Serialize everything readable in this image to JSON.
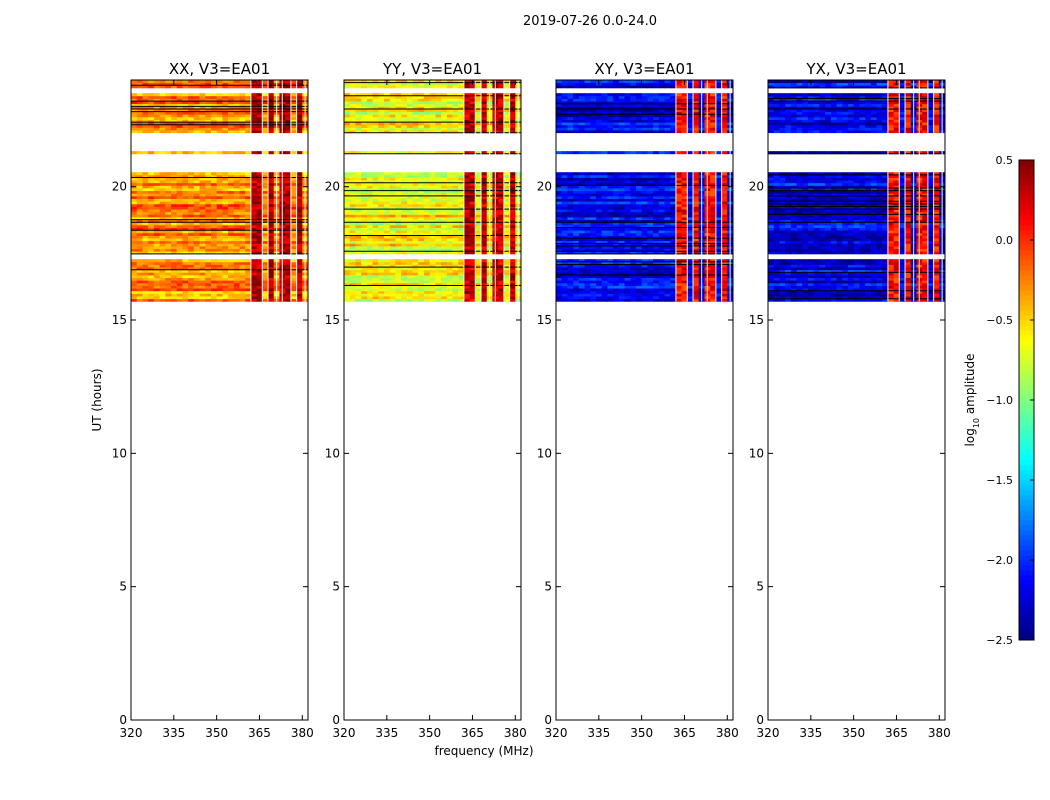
{
  "figure": {
    "suptitle": "2019-07-26 0.0-24.0",
    "ylabel": "UT (hours)",
    "xlabel": "frequency (MHz)",
    "colorbar_label_main": "log",
    "colorbar_label_sub": "10",
    "colorbar_label_tail": " amplitude"
  },
  "chart_data": {
    "type": "heatmap",
    "colormap": "jet",
    "x_range": [
      320,
      382
    ],
    "y_range": [
      0,
      24
    ],
    "x_ticks": [
      320,
      335,
      350,
      365,
      380
    ],
    "y_ticks": [
      0,
      5,
      10,
      15,
      20
    ],
    "colorbar_range": [
      -2.5,
      0.5
    ],
    "colorbar_ticks": [
      {
        "value": 0.5,
        "label": "0.5"
      },
      {
        "value": 0.0,
        "label": "0.0"
      },
      {
        "value": -0.5,
        "label": "−0.5"
      },
      {
        "value": -1.0,
        "label": "−1.0"
      },
      {
        "value": -1.5,
        "label": "−1.5"
      },
      {
        "value": -2.0,
        "label": "−2.0"
      },
      {
        "value": -2.5,
        "label": "−2.5"
      }
    ],
    "data_time_range": [
      15.7,
      24.0
    ],
    "gap_time_ranges": [
      [
        23.55,
        23.75
      ],
      [
        20.5,
        21.2
      ],
      [
        21.3,
        22.0
      ],
      [
        17.3,
        17.5
      ]
    ],
    "panels": [
      {
        "title": "XX, V3=EA01",
        "base_level": -0.3,
        "band_level": 0.35
      },
      {
        "title": "YY, V3=EA01",
        "base_level": -0.65,
        "band_level": 0.3
      },
      {
        "title": "XY, V3=EA01",
        "base_level": -2.2,
        "band_level": 0.1
      },
      {
        "title": "YX, V3=EA01",
        "base_level": -2.2,
        "band_level": 0.1
      }
    ],
    "band_edges_mhz": [
      362,
      366,
      368,
      371,
      373,
      376,
      378,
      381
    ]
  }
}
